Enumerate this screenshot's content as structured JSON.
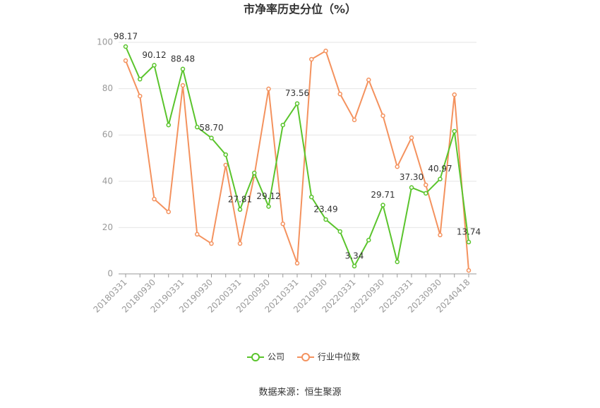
{
  "chart_data": {
    "type": "line",
    "title": "市净率历史分位（%）",
    "source": "数据来源：恒生聚源",
    "categories": [
      "20180331",
      null,
      "20180930",
      null,
      "20190331",
      null,
      "20190930",
      null,
      "20200331",
      null,
      "20200930",
      null,
      "20210331",
      null,
      "20210930",
      null,
      "20220331",
      null,
      "20220930",
      null,
      "20230331",
      null,
      "20230930",
      null,
      "20240418"
    ],
    "series": [
      {
        "name": "公司",
        "color": "#5ac42c",
        "values": [
          98.17,
          84.1,
          90.12,
          64.3,
          88.48,
          63.4,
          58.7,
          51.5,
          27.81,
          43.6,
          29.12,
          64.3,
          73.56,
          33.2,
          23.49,
          18.3,
          3.34,
          14.6,
          29.71,
          5.2,
          37.3,
          34.8,
          40.97,
          61.6,
          13.74
        ],
        "value_labels": [
          "98.17",
          null,
          "90.12",
          null,
          "88.48",
          null,
          "58.70",
          null,
          "27.81",
          null,
          "29.12",
          null,
          "73.56",
          null,
          "23.49",
          null,
          "3.34",
          null,
          "29.71",
          null,
          "37.30",
          null,
          "40.97",
          null,
          "13.74"
        ]
      },
      {
        "name": "行业中位数",
        "color": "#f4925e",
        "values": [
          92.1,
          76.8,
          32.3,
          26.8,
          81.4,
          17.1,
          13.1,
          47.0,
          13.1,
          42.4,
          79.9,
          21.6,
          4.6,
          92.7,
          96.3,
          77.7,
          66.5,
          83.8,
          68.3,
          46.3,
          58.8,
          38.4,
          16.8,
          77.4,
          1.5
        ]
      }
    ],
    "ylim": [
      0,
      100
    ],
    "yticks": [
      0,
      20,
      40,
      60,
      80,
      100
    ],
    "grid": true
  }
}
